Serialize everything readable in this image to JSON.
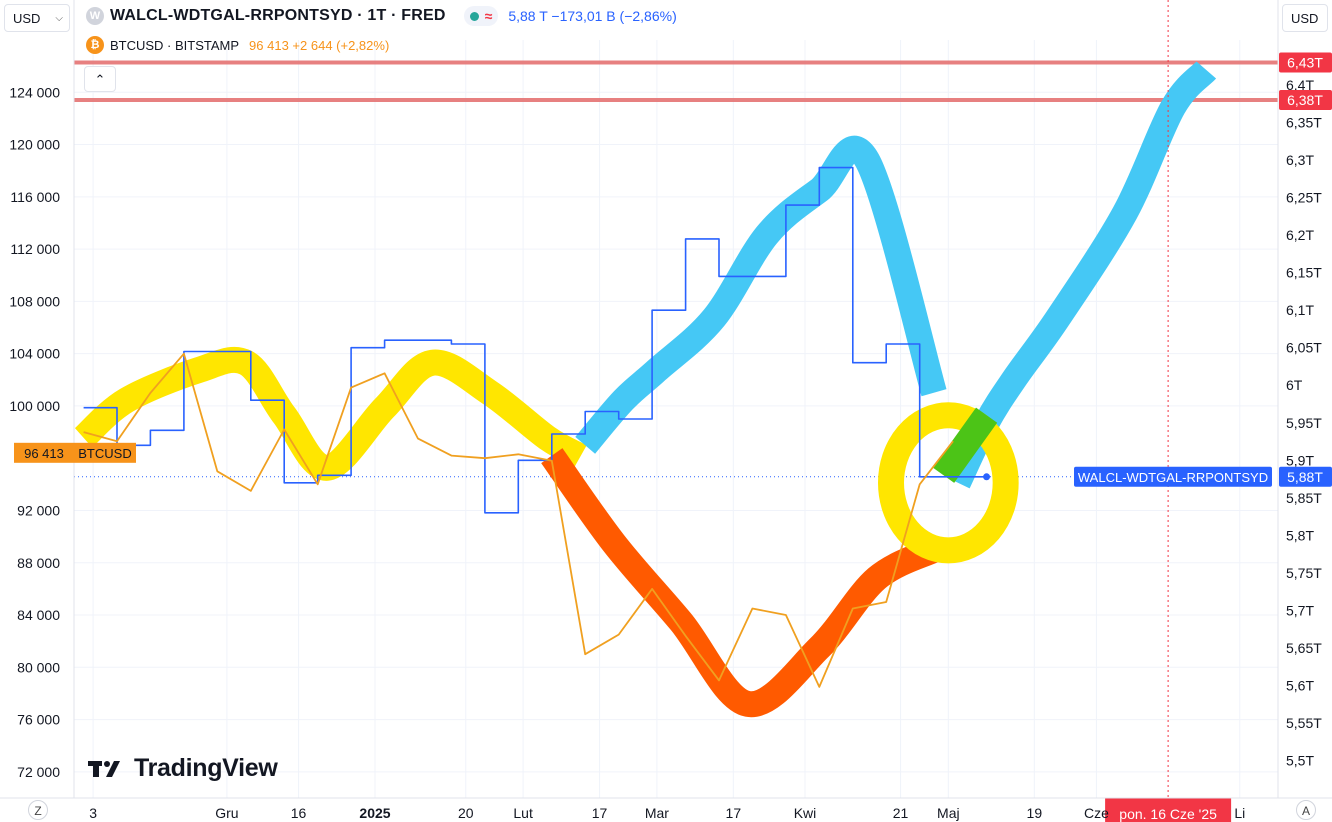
{
  "header": {
    "currency_left": "USD",
    "currency_right": "USD",
    "main_symbol": "WALCL-WDTGAL-RRPONTSYD · 1T · FRED",
    "main_values": "5,88 T  −173,01 B  (−2,86%)",
    "compare_symbol": "BTCUSD · BITSTAMP",
    "compare_values": "96 413  +2 644  (+2,82%)",
    "collapse_icon": "chevron-up-icon",
    "main_icon_letter": "W",
    "btc_icon_letter": "₿"
  },
  "logo": {
    "text": "TradingView"
  },
  "corners": {
    "left": "Z",
    "right": "A"
  },
  "colors": {
    "main_line": "#2962ff",
    "btc_line": "#f0a020",
    "yellow_band": "#ffe600",
    "blue_band": "#45c8f5",
    "orange_band": "#ff5a00",
    "green_band": "#4cc417",
    "level_line": "#e57373",
    "label_red": "#f23645"
  },
  "chart_data": {
    "type": "line",
    "x_axis": {
      "ticks": [
        {
          "label": "3",
          "date": "2024-11-03"
        },
        {
          "label": "Gru",
          "date": "2024-12-01"
        },
        {
          "label": "16",
          "date": "2024-12-16"
        },
        {
          "label": "2025",
          "date": "2025-01-01"
        },
        {
          "label": "20",
          "date": "2025-01-20"
        },
        {
          "label": "Lut",
          "date": "2025-02-01"
        },
        {
          "label": "17",
          "date": "2025-02-17"
        },
        {
          "label": "Mar",
          "date": "2025-03-01"
        },
        {
          "label": "17",
          "date": "2025-03-17"
        },
        {
          "label": "Kwi",
          "date": "2025-04-01"
        },
        {
          "label": "21",
          "date": "2025-04-21"
        },
        {
          "label": "Maj",
          "date": "2025-05-01"
        },
        {
          "label": "19",
          "date": "2025-05-19"
        },
        {
          "label": "Cze",
          "date": "2025-06-01"
        },
        {
          "label": "Li",
          "date": "2025-07-01"
        }
      ],
      "crosshair_label": "pon. 16 Cze '25",
      "crosshair_date": "2025-06-16"
    },
    "left_axis": {
      "unit": "USD",
      "range": [
        70000,
        128000
      ],
      "ticks": [
        {
          "label": "124 000",
          "value": 124000
        },
        {
          "label": "120 000",
          "value": 120000
        },
        {
          "label": "116 000",
          "value": 116000
        },
        {
          "label": "112 000",
          "value": 112000
        },
        {
          "label": "108 000",
          "value": 108000
        },
        {
          "label": "104 000",
          "value": 104000
        },
        {
          "label": "100 000",
          "value": 100000
        },
        {
          "label": "92 000",
          "value": 92000
        },
        {
          "label": "88 000",
          "value": 88000
        },
        {
          "label": "84 000",
          "value": 84000
        },
        {
          "label": "80 000",
          "value": 80000
        },
        {
          "label": "76 000",
          "value": 76000
        },
        {
          "label": "72 000",
          "value": 72000
        }
      ],
      "badge_value": "96 413",
      "badge_name": "BTCUSD"
    },
    "right_axis": {
      "range": [
        5.45,
        6.46
      ],
      "ticks": [
        {
          "label": "6,4T",
          "value": 6.4
        },
        {
          "label": "6,35T",
          "value": 6.35
        },
        {
          "label": "6,3T",
          "value": 6.3
        },
        {
          "label": "6,25T",
          "value": 6.25
        },
        {
          "label": "6,2T",
          "value": 6.2
        },
        {
          "label": "6,15T",
          "value": 6.15
        },
        {
          "label": "6,1T",
          "value": 6.1
        },
        {
          "label": "6,05T",
          "value": 6.05
        },
        {
          "label": "6T",
          "value": 6.0
        },
        {
          "label": "5,95T",
          "value": 5.95
        },
        {
          "label": "5,9T",
          "value": 5.9
        },
        {
          "label": "5,85T",
          "value": 5.85
        },
        {
          "label": "5,8T",
          "value": 5.8
        },
        {
          "label": "5,75T",
          "value": 5.75
        },
        {
          "label": "5,7T",
          "value": 5.7
        },
        {
          "label": "5,65T",
          "value": 5.65
        },
        {
          "label": "5,6T",
          "value": 5.6
        },
        {
          "label": "5,55T",
          "value": 5.55
        },
        {
          "label": "5,5T",
          "value": 5.5
        }
      ],
      "level_lines": [
        {
          "label": "6,43T",
          "value": 6.43
        },
        {
          "label": "6,38T",
          "value": 6.38
        }
      ],
      "last_value_label": "5,88T",
      "last_value": 5.878,
      "last_name": "WALCL-WDTGAL-RRPONTSYD"
    },
    "series": [
      {
        "name": "WALCL-WDTGAL-RRPONTSYD",
        "axis": "right",
        "style": "step",
        "x": [
          "2024-11-01",
          "2024-11-08",
          "2024-11-15",
          "2024-11-22",
          "2024-11-29",
          "2024-12-06",
          "2024-12-13",
          "2024-12-20",
          "2024-12-27",
          "2025-01-03",
          "2025-01-10",
          "2025-01-17",
          "2025-01-24",
          "2025-01-31",
          "2025-02-07",
          "2025-02-14",
          "2025-02-21",
          "2025-02-28",
          "2025-03-07",
          "2025-03-14",
          "2025-03-21",
          "2025-03-28",
          "2025-04-04",
          "2025-04-11",
          "2025-04-18",
          "2025-04-25",
          "2025-05-02",
          "2025-05-09"
        ],
        "y": [
          5.97,
          5.92,
          5.94,
          6.045,
          6.045,
          5.98,
          5.87,
          5.88,
          6.05,
          6.06,
          6.06,
          6.055,
          5.83,
          5.9,
          5.935,
          5.965,
          5.955,
          6.1,
          6.195,
          6.145,
          6.145,
          6.24,
          6.29,
          6.03,
          6.055,
          5.878,
          5.878,
          5.878
        ]
      },
      {
        "name": "BTCUSD",
        "axis": "left",
        "style": "line",
        "x": [
          "2024-11-01",
          "2024-11-08",
          "2024-11-15",
          "2024-11-22",
          "2024-11-29",
          "2024-12-06",
          "2024-12-13",
          "2024-12-20",
          "2024-12-27",
          "2025-01-03",
          "2025-01-10",
          "2025-01-17",
          "2025-01-24",
          "2025-01-31",
          "2025-02-07",
          "2025-02-14",
          "2025-02-21",
          "2025-02-28",
          "2025-03-07",
          "2025-03-14",
          "2025-03-21",
          "2025-03-28",
          "2025-04-04",
          "2025-04-11",
          "2025-04-18",
          "2025-04-25",
          "2025-05-02"
        ],
        "y": [
          98000,
          97300,
          101000,
          104000,
          95000,
          93500,
          98200,
          94000,
          101400,
          102500,
          97500,
          96200,
          96000,
          96300,
          95800,
          81000,
          82500,
          86000,
          82400,
          79000,
          84500,
          84000,
          78500,
          84500,
          85000,
          94000,
          97300
        ]
      }
    ],
    "annotations": [
      {
        "shape": "band",
        "color": "yellow",
        "axis": "right",
        "x": [
          "2024-11-01",
          "2024-11-10",
          "2024-11-25",
          "2024-12-05",
          "2024-12-13",
          "2024-12-22",
          "2025-01-03",
          "2025-01-13",
          "2025-01-25",
          "2025-02-06",
          "2025-02-13"
        ],
        "y": [
          5.93,
          5.98,
          6.02,
          6.03,
          5.96,
          5.89,
          5.97,
          6.03,
          5.99,
          5.93,
          5.905
        ]
      },
      {
        "shape": "band",
        "color": "blue",
        "axis": "right",
        "x": [
          "2025-02-14",
          "2025-02-22",
          "2025-03-01",
          "2025-03-13",
          "2025-03-24",
          "2025-04-04",
          "2025-04-14",
          "2025-04-28"
        ],
        "y": [
          5.92,
          5.98,
          6.02,
          6.09,
          6.2,
          6.26,
          6.3,
          5.99
        ]
      },
      {
        "shape": "band",
        "color": "blue",
        "axis": "right",
        "x": [
          "2025-05-03",
          "2025-05-09",
          "2025-05-15",
          "2025-05-24",
          "2025-06-07",
          "2025-06-17",
          "2025-06-24"
        ],
        "y": [
          5.87,
          5.95,
          6.01,
          6.09,
          6.23,
          6.37,
          6.42
        ]
      },
      {
        "shape": "band",
        "color": "orange",
        "axis": "left",
        "x": [
          "2025-02-07",
          "2025-02-20",
          "2025-03-06",
          "2025-03-20",
          "2025-04-04",
          "2025-04-16",
          "2025-04-28"
        ],
        "y": [
          96200,
          89500,
          83500,
          77200,
          81500,
          86800,
          89000
        ]
      },
      {
        "shape": "ellipse",
        "color": "yellow",
        "axis": "right",
        "x_center": "2025-05-01",
        "y_center": 5.87,
        "x_radius_days": 12,
        "y_radius": 0.09
      },
      {
        "shape": "band",
        "color": "green",
        "axis": "right",
        "x": [
          "2025-04-30",
          "2025-05-09"
        ],
        "y": [
          5.88,
          5.96
        ]
      }
    ]
  }
}
